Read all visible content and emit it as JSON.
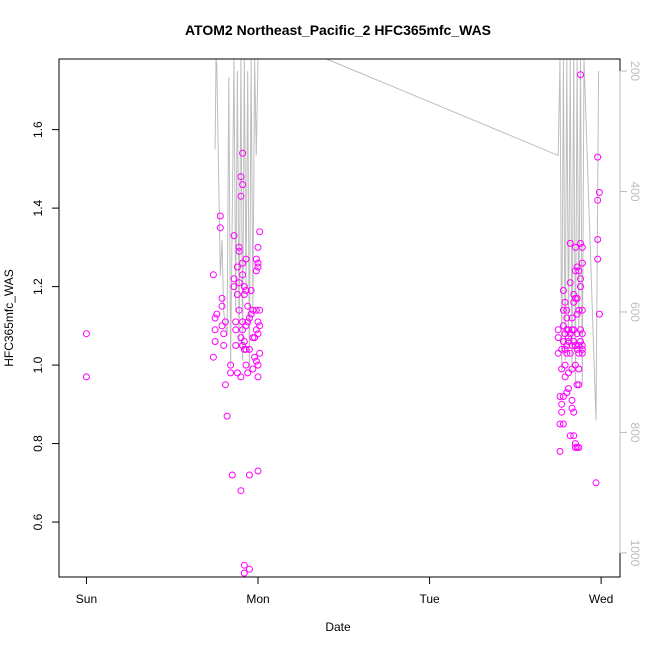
{
  "chart_data": {
    "type": "scatter",
    "title": "ATOM2 Northeast_Pacific_2 HFC365mfc_WAS",
    "xlabel": "Date",
    "ylabel": "HFC365mfc_WAS",
    "x_tick_labels": [
      "Sun",
      "Mon",
      "Tue",
      "Wed"
    ],
    "x_tick_values": [
      0,
      1,
      2,
      3
    ],
    "xlim": [
      -0.16,
      3.11
    ],
    "y_ticks": [
      0.6,
      0.8,
      1.0,
      1.2,
      1.4,
      1.6
    ],
    "y_tick_labels": [
      "0.6",
      "0.8",
      "1.0",
      "1.2",
      "1.4",
      "1.6"
    ],
    "ylim": [
      0.46,
      1.78
    ],
    "y2_ticks": [
      200,
      400,
      600,
      800,
      1000
    ],
    "y2_tick_labels": [
      "200",
      "400",
      "600",
      "800",
      "1000"
    ],
    "y2lim": [
      1040,
      180
    ],
    "grid": false,
    "marker_color": "#ff00ff",
    "altitude_line_color": "#bdbdbd",
    "series": [
      {
        "points": [
          [
            0.0,
            1.08
          ],
          [
            0.0,
            0.97
          ],
          [
            0.74,
            1.23
          ],
          [
            0.75,
            1.12
          ],
          [
            0.75,
            1.09
          ],
          [
            0.75,
            1.06
          ],
          [
            0.74,
            1.02
          ],
          [
            0.76,
            1.13
          ],
          [
            0.78,
            1.38
          ],
          [
            0.78,
            1.35
          ],
          [
            0.79,
            1.17
          ],
          [
            0.79,
            1.15
          ],
          [
            0.79,
            1.1
          ],
          [
            0.8,
            1.08
          ],
          [
            0.8,
            1.05
          ],
          [
            0.81,
            1.11
          ],
          [
            0.81,
            0.95
          ],
          [
            0.82,
            0.87
          ],
          [
            0.84,
            1.0
          ],
          [
            0.84,
            0.98
          ],
          [
            0.85,
            0.72
          ],
          [
            0.86,
            1.33
          ],
          [
            0.86,
            1.22
          ],
          [
            0.86,
            1.2
          ],
          [
            0.87,
            1.11
          ],
          [
            0.87,
            1.09
          ],
          [
            0.87,
            1.05
          ],
          [
            0.88,
            1.25
          ],
          [
            0.88,
            1.18
          ],
          [
            0.88,
            0.98
          ],
          [
            0.89,
            1.3
          ],
          [
            0.89,
            1.29
          ],
          [
            0.89,
            1.21
          ],
          [
            0.89,
            1.14
          ],
          [
            0.9,
            1.48
          ],
          [
            0.9,
            1.43
          ],
          [
            0.9,
            1.07
          ],
          [
            0.9,
            0.97
          ],
          [
            0.9,
            0.68
          ],
          [
            0.91,
            1.54
          ],
          [
            0.91,
            1.46
          ],
          [
            0.91,
            1.26
          ],
          [
            0.91,
            1.23
          ],
          [
            0.91,
            1.11
          ],
          [
            0.91,
            1.09
          ],
          [
            0.91,
            1.05
          ],
          [
            0.92,
            1.2
          ],
          [
            0.92,
            1.18
          ],
          [
            0.92,
            1.06
          ],
          [
            0.92,
            1.04
          ],
          [
            0.92,
            0.49
          ],
          [
            0.92,
            0.47
          ],
          [
            0.93,
            1.27
          ],
          [
            0.93,
            1.19
          ],
          [
            0.93,
            1.1
          ],
          [
            0.93,
            1.04
          ],
          [
            0.93,
            1.0
          ],
          [
            0.94,
            1.15
          ],
          [
            0.94,
            1.11
          ],
          [
            0.94,
            0.98
          ],
          [
            0.95,
            1.12
          ],
          [
            0.95,
            1.04
          ],
          [
            0.95,
            0.72
          ],
          [
            0.95,
            0.48
          ],
          [
            0.96,
            1.19
          ],
          [
            0.96,
            1.13
          ],
          [
            0.97,
            1.14
          ],
          [
            0.97,
            1.07
          ],
          [
            0.97,
            0.99
          ],
          [
            0.98,
            1.07
          ],
          [
            0.98,
            1.02
          ],
          [
            0.99,
            1.27
          ],
          [
            0.99,
            1.24
          ],
          [
            0.99,
            1.14
          ],
          [
            0.99,
            1.09
          ],
          [
            0.99,
            1.01
          ],
          [
            1.0,
            1.3
          ],
          [
            1.0,
            1.26
          ],
          [
            1.0,
            1.25
          ],
          [
            1.0,
            1.08
          ],
          [
            1.0,
            1.0
          ],
          [
            1.0,
            0.97
          ],
          [
            1.0,
            0.73
          ],
          [
            1.01,
            1.34
          ],
          [
            1.01,
            1.14
          ],
          [
            1.01,
            1.1
          ],
          [
            1.01,
            1.03
          ],
          [
            1.0,
            1.11
          ]
        ]
      },
      {
        "points": [
          [
            2.75,
            1.09
          ],
          [
            2.75,
            1.07
          ],
          [
            2.75,
            1.03
          ],
          [
            2.76,
            0.92
          ],
          [
            2.76,
            0.85
          ],
          [
            2.76,
            0.78
          ],
          [
            2.77,
            1.04
          ],
          [
            2.77,
            0.99
          ],
          [
            2.77,
            0.9
          ],
          [
            2.77,
            0.88
          ],
          [
            2.78,
            1.19
          ],
          [
            2.78,
            1.14
          ],
          [
            2.78,
            1.1
          ],
          [
            2.78,
            1.06
          ],
          [
            2.78,
            0.92
          ],
          [
            2.78,
            0.85
          ],
          [
            2.79,
            1.16
          ],
          [
            2.79,
            1.08
          ],
          [
            2.79,
            1.04
          ],
          [
            2.79,
            1.0
          ],
          [
            2.79,
            0.97
          ],
          [
            2.8,
            1.14
          ],
          [
            2.8,
            1.12
          ],
          [
            2.8,
            1.09
          ],
          [
            2.8,
            1.05
          ],
          [
            2.8,
            1.03
          ],
          [
            2.8,
            0.93
          ],
          [
            2.81,
            1.09
          ],
          [
            2.81,
            1.06
          ],
          [
            2.81,
            0.98
          ],
          [
            2.81,
            0.94
          ],
          [
            2.82,
            1.31
          ],
          [
            2.82,
            1.21
          ],
          [
            2.82,
            1.08
          ],
          [
            2.82,
            1.03
          ],
          [
            2.82,
            0.82
          ],
          [
            2.83,
            1.09
          ],
          [
            2.83,
            1.05
          ],
          [
            2.83,
            0.99
          ],
          [
            2.83,
            0.91
          ],
          [
            2.83,
            0.89
          ],
          [
            2.84,
            1.18
          ],
          [
            2.84,
            1.09
          ],
          [
            2.84,
            1.06
          ],
          [
            2.84,
            0.88
          ],
          [
            2.84,
            0.82
          ],
          [
            2.85,
            1.3
          ],
          [
            2.85,
            1.24
          ],
          [
            2.85,
            1.17
          ],
          [
            2.85,
            1.05
          ],
          [
            2.85,
            1.0
          ],
          [
            2.85,
            0.8
          ],
          [
            2.85,
            0.79
          ],
          [
            2.86,
            1.25
          ],
          [
            2.86,
            1.17
          ],
          [
            2.86,
            1.13
          ],
          [
            2.86,
            1.08
          ],
          [
            2.86,
            1.04
          ],
          [
            2.86,
            0.95
          ],
          [
            2.86,
            0.79
          ],
          [
            2.87,
            1.24
          ],
          [
            2.87,
            1.14
          ],
          [
            2.87,
            1.05
          ],
          [
            2.87,
            0.99
          ],
          [
            2.87,
            0.95
          ],
          [
            2.87,
            0.79
          ],
          [
            2.88,
            1.74
          ],
          [
            2.88,
            1.31
          ],
          [
            2.88,
            1.22
          ],
          [
            2.88,
            1.2
          ],
          [
            2.88,
            1.09
          ],
          [
            2.88,
            1.06
          ],
          [
            2.89,
            1.3
          ],
          [
            2.89,
            1.26
          ],
          [
            2.89,
            1.14
          ],
          [
            2.89,
            1.08
          ],
          [
            2.89,
            1.05
          ],
          [
            2.89,
            1.03
          ],
          [
            2.89,
            1.04
          ],
          [
            2.97,
            0.7
          ],
          [
            2.98,
            1.53
          ],
          [
            2.99,
            1.44
          ],
          [
            2.98,
            1.42
          ],
          [
            2.98,
            1.32
          ],
          [
            2.98,
            1.27
          ],
          [
            2.99,
            1.13
          ],
          [
            2.81,
            1.07
          ],
          [
            2.84,
            1.16
          ],
          [
            2.83,
            1.12
          ],
          [
            2.87,
            1.03
          ]
        ]
      }
    ],
    "altitude_line": [
      [
        0.75,
        330
      ],
      [
        0.755,
        180
      ],
      [
        0.76,
        190
      ],
      [
        0.78,
        540
      ],
      [
        0.79,
        480
      ],
      [
        0.8,
        600
      ],
      [
        0.82,
        640
      ],
      [
        0.83,
        210
      ],
      [
        0.84,
        690
      ],
      [
        0.86,
        180
      ],
      [
        0.87,
        600
      ],
      [
        0.88,
        200
      ],
      [
        0.89,
        660
      ],
      [
        0.9,
        180
      ],
      [
        0.91,
        680
      ],
      [
        0.92,
        180
      ],
      [
        0.93,
        560
      ],
      [
        0.94,
        200
      ],
      [
        0.95,
        700
      ],
      [
        0.96,
        180
      ],
      [
        0.97,
        600
      ],
      [
        0.98,
        180
      ],
      [
        0.99,
        340
      ],
      [
        1.0,
        180
      ],
      [
        1.4,
        180
      ],
      [
        2.75,
        340
      ],
      [
        2.76,
        180
      ],
      [
        2.77,
        700
      ],
      [
        2.78,
        180
      ],
      [
        2.79,
        680
      ],
      [
        2.8,
        180
      ],
      [
        2.81,
        650
      ],
      [
        2.82,
        180
      ],
      [
        2.83,
        700
      ],
      [
        2.84,
        180
      ],
      [
        2.85,
        720
      ],
      [
        2.86,
        180
      ],
      [
        2.87,
        640
      ],
      [
        2.88,
        180
      ],
      [
        2.89,
        720
      ],
      [
        2.9,
        180
      ],
      [
        2.97,
        780
      ],
      [
        2.985,
        200
      ]
    ]
  }
}
